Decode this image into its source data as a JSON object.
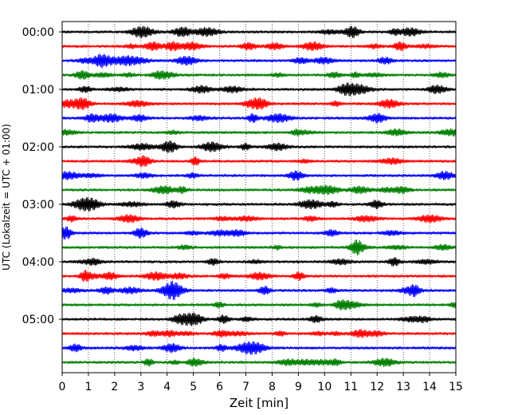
{
  "chart_data": {
    "type": "line",
    "title": "",
    "xlabel": "Zeit  [min]",
    "ylabel": "UTC (Lokalzeit = UTC + 01:00)",
    "xlim": [
      0,
      15
    ],
    "x_ticks": [
      "0",
      "1",
      "2",
      "3",
      "4",
      "5",
      "6",
      "7",
      "8",
      "9",
      "10",
      "11",
      "12",
      "13",
      "14",
      "15"
    ],
    "y_ticks": [
      "00:00",
      "01:00",
      "02:00",
      "03:00",
      "04:00",
      "05:00"
    ],
    "grid": "vertical dotted lines at each minute",
    "series_colors": [
      "#000000",
      "#ff0000",
      "#0000ff",
      "#008000"
    ],
    "trace_count": 24,
    "trace_interval_minutes": 15,
    "traces": [
      {
        "start": "00:00",
        "color": "#000000"
      },
      {
        "start": "00:15",
        "color": "#ff0000"
      },
      {
        "start": "00:30",
        "color": "#0000ff"
      },
      {
        "start": "00:45",
        "color": "#008000"
      },
      {
        "start": "01:00",
        "color": "#000000"
      },
      {
        "start": "01:15",
        "color": "#ff0000"
      },
      {
        "start": "01:30",
        "color": "#0000ff"
      },
      {
        "start": "01:45",
        "color": "#008000"
      },
      {
        "start": "02:00",
        "color": "#000000"
      },
      {
        "start": "02:15",
        "color": "#ff0000"
      },
      {
        "start": "02:30",
        "color": "#0000ff"
      },
      {
        "start": "02:45",
        "color": "#008000"
      },
      {
        "start": "03:00",
        "color": "#000000"
      },
      {
        "start": "03:15",
        "color": "#ff0000"
      },
      {
        "start": "03:30",
        "color": "#0000ff"
      },
      {
        "start": "03:45",
        "color": "#008000"
      },
      {
        "start": "04:00",
        "color": "#000000"
      },
      {
        "start": "04:15",
        "color": "#ff0000"
      },
      {
        "start": "04:30",
        "color": "#0000ff"
      },
      {
        "start": "04:45",
        "color": "#008000"
      },
      {
        "start": "05:00",
        "color": "#000000"
      },
      {
        "start": "05:15",
        "color": "#ff0000"
      },
      {
        "start": "05:30",
        "color": "#0000ff"
      },
      {
        "start": "05:45",
        "color": "#008000"
      }
    ]
  }
}
